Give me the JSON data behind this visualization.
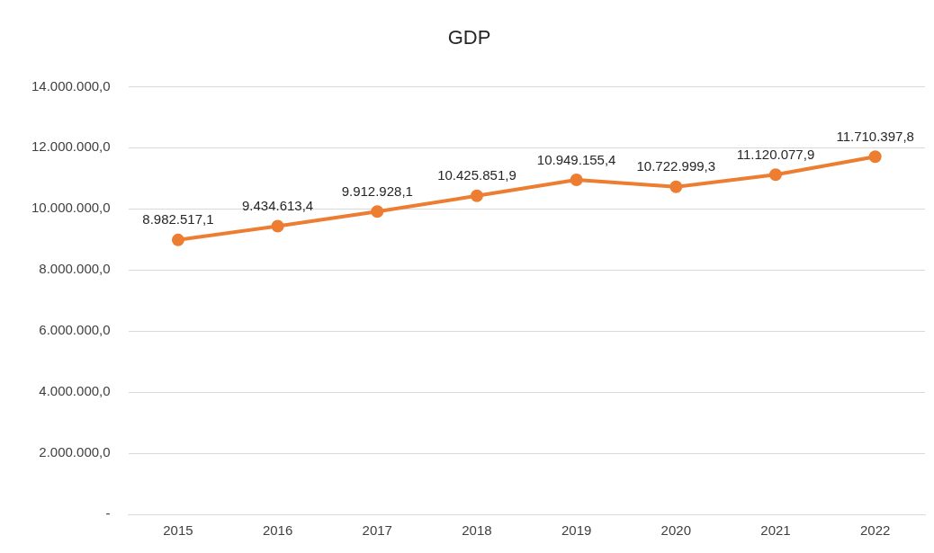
{
  "chart_data": {
    "type": "line",
    "title": "GDP",
    "categories": [
      "2015",
      "2016",
      "2017",
      "2018",
      "2019",
      "2020",
      "2021",
      "2022"
    ],
    "series": [
      {
        "color": "#ed7d31",
        "values": [
          8982517.1,
          9434613.4,
          9912928.1,
          10425851.9,
          10949155.4,
          10722999.3,
          11120077.9,
          11710397.8
        ],
        "value_labels": [
          "8.982.517,1",
          "9.434.613,4",
          "9.912.928,1",
          "10.425.851,9",
          "10.949.155,4",
          "10.722.999,3",
          "11.120.077,9",
          "11.710.397,8"
        ]
      }
    ],
    "ylim": [
      0,
      14000000
    ],
    "yticks": [
      {
        "value": 0,
        "label": "-"
      },
      {
        "value": 2000000,
        "label": "2.000.000,0"
      },
      {
        "value": 4000000,
        "label": "4.000.000,0"
      },
      {
        "value": 6000000,
        "label": "6.000.000,0"
      },
      {
        "value": 8000000,
        "label": "8.000.000,0"
      },
      {
        "value": 10000000,
        "label": "10.000.000,0"
      },
      {
        "value": 12000000,
        "label": "12.000.000,0"
      },
      {
        "value": 14000000,
        "label": "14.000.000,0"
      }
    ],
    "grid": "y",
    "legend": false,
    "marker": "circle",
    "line_style": "solid"
  }
}
